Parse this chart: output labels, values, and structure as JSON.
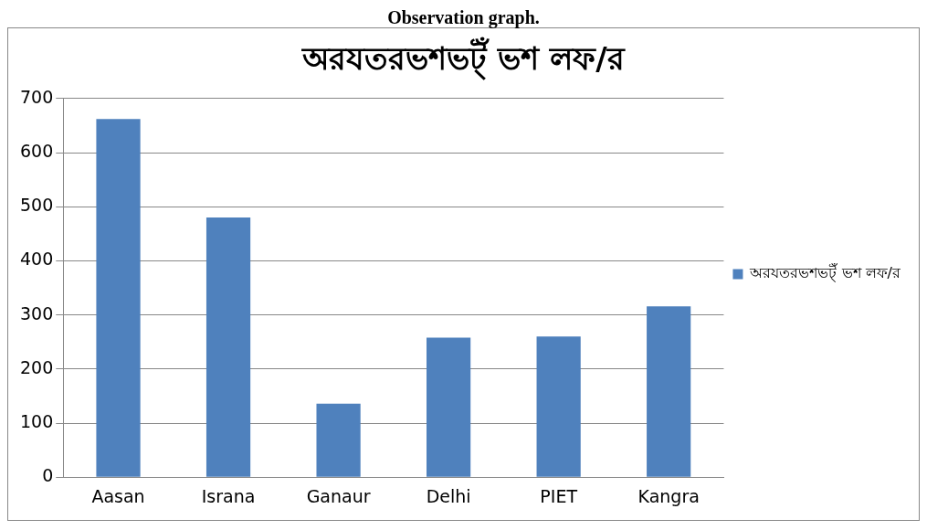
{
  "chart_data": {
    "type": "bar",
    "title": "অরযতরভশভট্ঁ ভশ লফ/র",
    "annotations": [
      "Observation graph."
    ],
    "categories": [
      "Aasan",
      "Israna",
      "Ganaur",
      "Delhi",
      "PIET",
      "Kangra"
    ],
    "series": [
      {
        "name": "অরযতরভশভট্ঁ ভশ লফ/র",
        "color": "#4f81bd",
        "values": [
          662,
          480,
          136,
          258,
          260,
          316
        ]
      }
    ],
    "ylim": [
      0,
      700
    ],
    "yticks": [
      0,
      100,
      200,
      300,
      400,
      500,
      600,
      700
    ],
    "grid": "y",
    "legend": "right"
  }
}
